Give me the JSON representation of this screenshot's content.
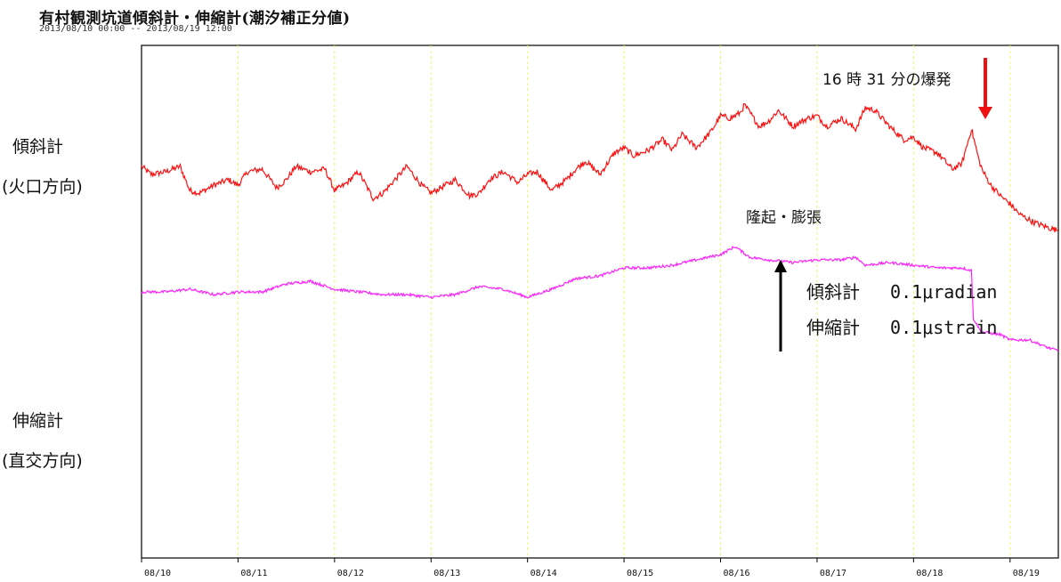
{
  "title": "有村観測坑道傾斜計・伸縮計(潮汐補正分値)",
  "subtitle": "2013/08/10 00:00 -- 2013/08/19 12:00",
  "labels": {
    "tilt_name": "傾斜計",
    "tilt_dir": "(火口方向)",
    "ext_name": "伸縮計",
    "ext_dir": "(直交方向)",
    "eruption": "16 時 31 分の爆発",
    "uplift": "隆起・膨張",
    "scale_tilt_name": "傾斜計",
    "scale_tilt_value": "0.1μradian",
    "scale_ext_name": "伸縮計",
    "scale_ext_value": "0.1μstrain"
  },
  "colors": {
    "tilt": "#ff1010",
    "extensometer": "#ff22ff",
    "grid": "#f2f26a",
    "arrow_eruption": "#ee1111",
    "arrow_uplift": "#000000"
  },
  "chart_data": {
    "type": "line",
    "title": "有村観測坑道傾斜計・伸縮計(潮汐補正分値)",
    "subtitle": "2013/08/10 00:00 -- 2013/08/19 12:00",
    "x_unit": "days since 08/10 00:00",
    "xlim": [
      0,
      9.5
    ],
    "x_ticks": [
      "08/10",
      "08/11",
      "08/12",
      "08/13",
      "08/14",
      "08/15",
      "08/16",
      "08/17",
      "08/18",
      "08/19"
    ],
    "grid": "vertical dashed yellow lines at each day",
    "ylim": [
      -0.8,
      1.0
    ],
    "y_unit": "relative (scale arrow = 0.1)",
    "series": [
      {
        "name": "傾斜計",
        "x": [
          0,
          0.1,
          0.25,
          0.4,
          0.5,
          0.6,
          0.75,
          0.9,
          1.0,
          1.1,
          1.25,
          1.4,
          1.5,
          1.6,
          1.75,
          1.9,
          2.0,
          2.1,
          2.25,
          2.4,
          2.5,
          2.6,
          2.75,
          2.9,
          3.0,
          3.1,
          3.25,
          3.4,
          3.5,
          3.6,
          3.75,
          3.9,
          4.0,
          4.1,
          4.25,
          4.4,
          4.5,
          4.6,
          4.75,
          4.9,
          5.0,
          5.1,
          5.25,
          5.4,
          5.5,
          5.6,
          5.75,
          5.9,
          6.0,
          6.1,
          6.2,
          6.25,
          6.4,
          6.5,
          6.6,
          6.75,
          6.9,
          7.0,
          7.1,
          7.25,
          7.4,
          7.5,
          7.6,
          7.75,
          7.9,
          8.0,
          8.1,
          8.25,
          8.4,
          8.5,
          8.6,
          8.68,
          8.72,
          8.8,
          8.9,
          9.0,
          9.1,
          9.25,
          9.4,
          9.5
        ],
        "values": [
          0.05,
          0.02,
          0.03,
          0.05,
          -0.04,
          -0.05,
          -0.02,
          0.0,
          -0.02,
          0.03,
          0.04,
          -0.03,
          0.0,
          0.05,
          0.03,
          0.04,
          -0.04,
          -0.02,
          0.03,
          -0.07,
          -0.05,
          -0.01,
          0.05,
          -0.02,
          -0.05,
          -0.03,
          0.0,
          -0.06,
          -0.05,
          0.0,
          0.03,
          -0.01,
          0.02,
          0.03,
          -0.04,
          0.0,
          0.04,
          0.07,
          0.02,
          0.1,
          0.12,
          0.09,
          0.11,
          0.15,
          0.11,
          0.17,
          0.12,
          0.18,
          0.24,
          0.23,
          0.25,
          0.28,
          0.2,
          0.22,
          0.26,
          0.2,
          0.23,
          0.24,
          0.2,
          0.23,
          0.19,
          0.27,
          0.26,
          0.2,
          0.15,
          0.16,
          0.12,
          0.1,
          0.04,
          0.06,
          0.19,
          0.07,
          0.03,
          -0.02,
          -0.06,
          -0.09,
          -0.13,
          -0.16,
          -0.18,
          -0.19
        ]
      },
      {
        "name": "伸縮計",
        "x": [
          0,
          0.25,
          0.5,
          0.75,
          1.0,
          1.25,
          1.5,
          1.75,
          2.0,
          2.25,
          2.5,
          2.75,
          3.0,
          3.25,
          3.5,
          3.75,
          4.0,
          4.25,
          4.5,
          4.75,
          5.0,
          5.25,
          5.5,
          5.75,
          6.0,
          6.15,
          6.3,
          6.5,
          6.75,
          7.0,
          7.25,
          7.4,
          7.5,
          7.75,
          8.0,
          8.25,
          8.5,
          8.6,
          8.62,
          8.7,
          8.9,
          9.0,
          9.2,
          9.4,
          9.5
        ],
        "values": [
          -0.42,
          -0.42,
          -0.41,
          -0.43,
          -0.42,
          -0.42,
          -0.39,
          -0.38,
          -0.41,
          -0.42,
          -0.43,
          -0.43,
          -0.44,
          -0.43,
          -0.4,
          -0.41,
          -0.44,
          -0.41,
          -0.37,
          -0.36,
          -0.33,
          -0.33,
          -0.32,
          -0.3,
          -0.28,
          -0.25,
          -0.29,
          -0.3,
          -0.31,
          -0.3,
          -0.3,
          -0.29,
          -0.32,
          -0.31,
          -0.32,
          -0.33,
          -0.33,
          -0.34,
          -0.52,
          -0.57,
          -0.58,
          -0.6,
          -0.6,
          -0.63,
          -0.64
        ]
      }
    ]
  }
}
